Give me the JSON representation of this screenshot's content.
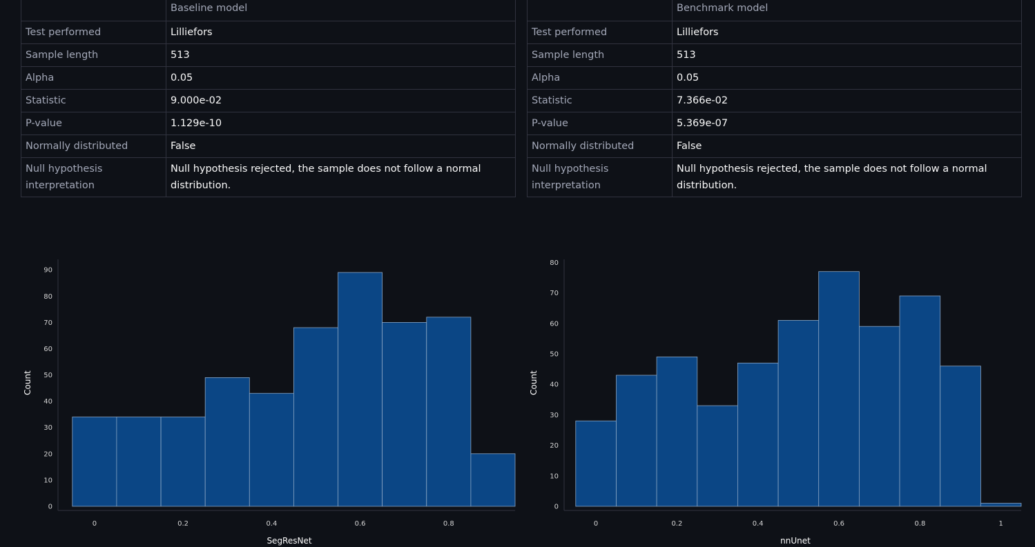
{
  "tables": [
    {
      "header": "Baseline model",
      "rows": [
        {
          "key": "Test performed",
          "value": "Lilliefors"
        },
        {
          "key": "Sample length",
          "value": "513"
        },
        {
          "key": "Alpha",
          "value": "0.05"
        },
        {
          "key": "Statistic",
          "value": "9.000e-02"
        },
        {
          "key": "P-value",
          "value": "1.129e-10"
        },
        {
          "key": "Normally distributed",
          "value": "False"
        },
        {
          "key": "Null hypothesis interpretation",
          "value": "Null hypothesis rejected, the sample does not follow a normal distribution."
        }
      ]
    },
    {
      "header": "Benchmark model",
      "rows": [
        {
          "key": "Test performed",
          "value": "Lilliefors"
        },
        {
          "key": "Sample length",
          "value": "513"
        },
        {
          "key": "Alpha",
          "value": "0.05"
        },
        {
          "key": "Statistic",
          "value": "7.366e-02"
        },
        {
          "key": "P-value",
          "value": "5.369e-07"
        },
        {
          "key": "Normally distributed",
          "value": "False"
        },
        {
          "key": "Null hypothesis interpretation",
          "value": "Null hypothesis rejected, the sample does not follow a normal distribution."
        }
      ]
    }
  ],
  "colors": {
    "background": "#0e1117",
    "bar_fill": "#0b4685",
    "bar_stroke": "#8aa5c4",
    "grid": "#31333f",
    "text": "#fafafa"
  },
  "chart_data": [
    {
      "type": "bar",
      "xlabel": "SegResNet",
      "ylabel": "Count",
      "bin_edges": [
        -0.05,
        0.05,
        0.15,
        0.25,
        0.35,
        0.45,
        0.55,
        0.65,
        0.75,
        0.85,
        0.95
      ],
      "values": [
        34,
        34,
        34,
        49,
        43,
        68,
        89,
        70,
        72,
        20
      ],
      "xlim": [
        -0.07,
        0.95
      ],
      "ylim": [
        0,
        94
      ],
      "xticks": [
        0,
        0.2,
        0.4,
        0.6,
        0.8
      ],
      "xtick_labels": [
        "0",
        "0.2",
        "0.4",
        "0.6",
        "0.8"
      ],
      "yticks": [
        0,
        10,
        20,
        30,
        40,
        50,
        60,
        70,
        80,
        90
      ],
      "ytick_labels": [
        "0",
        "10",
        "20",
        "30",
        "40",
        "50",
        "60",
        "70",
        "80",
        "90"
      ]
    },
    {
      "type": "bar",
      "xlabel": "nnUnet",
      "ylabel": "Count",
      "bin_edges": [
        -0.05,
        0.05,
        0.15,
        0.25,
        0.35,
        0.45,
        0.55,
        0.65,
        0.75,
        0.85,
        0.95,
        1.05
      ],
      "values": [
        28,
        43,
        49,
        33,
        47,
        61,
        77,
        59,
        69,
        46,
        1
      ],
      "xlim": [
        -0.065,
        1.05
      ],
      "ylim": [
        0,
        81
      ],
      "xticks": [
        0,
        0.2,
        0.4,
        0.6,
        0.8,
        1
      ],
      "xtick_labels": [
        "0",
        "0.2",
        "0.4",
        "0.6",
        "0.8",
        "1"
      ],
      "yticks": [
        0,
        10,
        20,
        30,
        40,
        50,
        60,
        70,
        80
      ],
      "ytick_labels": [
        "0",
        "10",
        "20",
        "30",
        "40",
        "50",
        "60",
        "70",
        "80"
      ]
    }
  ]
}
